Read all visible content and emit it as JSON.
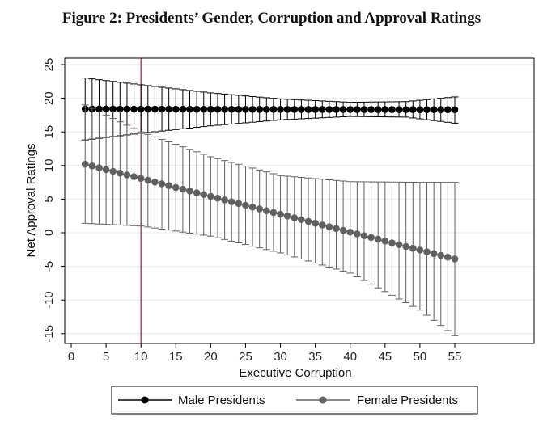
{
  "chart_data": {
    "type": "line",
    "title": "Figure 2: Presidents’ Gender, Corruption and Approval Ratings",
    "xlabel": "Executive Corruption",
    "ylabel": "Net Approval Ratings",
    "xlim": [
      0,
      55
    ],
    "ylim": [
      -16,
      25.5
    ],
    "x_ticks": [
      0,
      5,
      10,
      15,
      20,
      25,
      30,
      35,
      40,
      45,
      50,
      55
    ],
    "y_ticks": [
      -15,
      -10,
      -5,
      0,
      5,
      10,
      15,
      20,
      25
    ],
    "grid": true,
    "reference_line_x": 10,
    "reference_line_color": "#b0103a",
    "legend_position": "bottom",
    "series": [
      {
        "name": "Male Presidents",
        "color": "#000000",
        "x_start": 2,
        "x_end": 55,
        "x_step": 1,
        "estimate": {
          "start": 18.4,
          "end": 18.3
        },
        "ci_low_anchors": [
          [
            2,
            13.8
          ],
          [
            10,
            14.8
          ],
          [
            20,
            15.9
          ],
          [
            30,
            16.8
          ],
          [
            40,
            17.3
          ],
          [
            48,
            17.2
          ],
          [
            55,
            16.3
          ]
        ],
        "ci_high_anchors": [
          [
            2,
            23.0
          ],
          [
            10,
            22.0
          ],
          [
            20,
            20.8
          ],
          [
            30,
            19.9
          ],
          [
            40,
            19.4
          ],
          [
            48,
            19.5
          ],
          [
            55,
            20.2
          ]
        ]
      },
      {
        "name": "Female Presidents",
        "color": "#606060",
        "x_start": 2,
        "x_end": 55,
        "x_step": 1,
        "estimate": {
          "start": 10.2,
          "end": -3.9
        },
        "ci_low_anchors": [
          [
            2,
            1.4
          ],
          [
            10,
            1.0
          ],
          [
            20,
            -0.5
          ],
          [
            30,
            -3.0
          ],
          [
            40,
            -6.0
          ],
          [
            50,
            -11.5
          ],
          [
            55,
            -15.3
          ]
        ],
        "ci_high_anchors": [
          [
            2,
            19.0
          ],
          [
            10,
            15.0
          ],
          [
            20,
            11.3
          ],
          [
            30,
            8.5
          ],
          [
            40,
            7.6
          ],
          [
            50,
            7.5
          ],
          [
            55,
            7.5
          ]
        ]
      }
    ]
  }
}
